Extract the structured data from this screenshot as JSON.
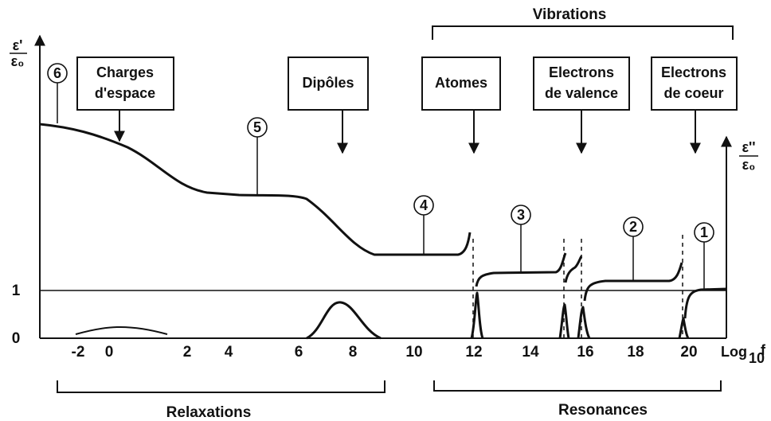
{
  "vibrations": "Vibrations",
  "y_left": {
    "num": "ε'",
    "den": "ε₀"
  },
  "y_right": {
    "num": "ε''",
    "den": "ε₀"
  },
  "boxes": [
    [
      "Charges",
      "d'espace"
    ],
    [
      "Dipôles"
    ],
    [
      "Atomes"
    ],
    [
      "Electrons",
      "de valence"
    ],
    [
      "Electrons",
      "de coeur"
    ]
  ],
  "markers": [
    "6",
    "5",
    "4",
    "3",
    "2",
    "1"
  ],
  "x_ticks": [
    -2,
    0,
    2,
    4,
    6,
    8,
    10,
    12,
    14,
    16,
    18,
    20
  ],
  "x_axis_label": {
    "main": "Log",
    "sub": "10",
    "end": "f"
  },
  "y_ticks": [
    "1",
    "0"
  ],
  "relaxations": "Relaxations",
  "resonances": "Resonances"
}
